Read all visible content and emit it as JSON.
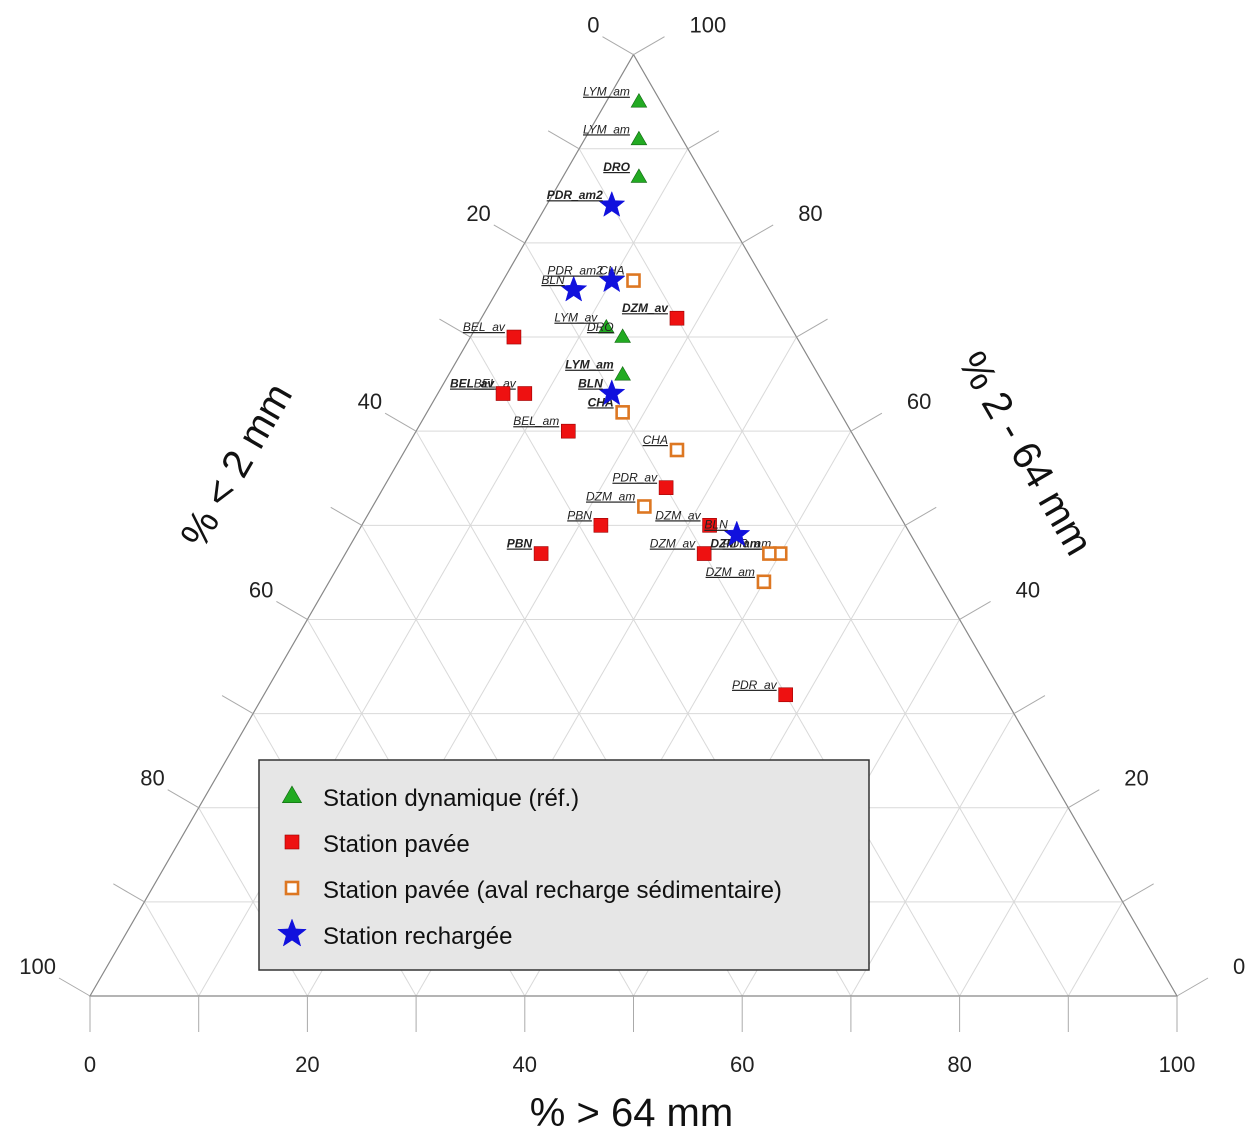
{
  "chart_data": {
    "type": "scatter",
    "subtype": "ternary",
    "axes": {
      "bottom": {
        "label": "% > 64 mm",
        "ticks": [
          "0",
          "20",
          "40",
          "60",
          "80",
          "100"
        ]
      },
      "left": {
        "label": "% < 2 mm",
        "ticks": [
          "0",
          "20",
          "40",
          "60",
          "80",
          "100"
        ]
      },
      "right": {
        "label": "% 2 - 64 mm",
        "ticks": [
          "100",
          "80",
          "60",
          "40",
          "20",
          "0"
        ]
      }
    },
    "grid": true,
    "legend_position": "bottom-center",
    "series": [
      {
        "name": "Station dynamique (réf.)",
        "marker": "triangle",
        "color": "#22aa22",
        "points": [
          {
            "label": "LYM_am",
            "bold": false,
            "coarse": 3,
            "sand": 2,
            "gravel": 95
          },
          {
            "label": "LYM_am",
            "bold": false,
            "coarse": 5,
            "sand": 4,
            "gravel": 91
          },
          {
            "label": "DRO",
            "bold": true,
            "coarse": 7,
            "sand": 6,
            "gravel": 87
          },
          {
            "label": "LYM_av",
            "bold": false,
            "coarse": 12,
            "sand": 17,
            "gravel": 71
          },
          {
            "label": "DRO",
            "bold": false,
            "coarse": 14,
            "sand": 16,
            "gravel": 70
          },
          {
            "label": "LYM_am",
            "bold": true,
            "coarse": 16,
            "sand": 18,
            "gravel": 66
          }
        ]
      },
      {
        "name": "Station pavée",
        "marker": "square",
        "color": "#ee1111",
        "points": [
          {
            "label": "DZM_av",
            "bold": true,
            "coarse": 18,
            "sand": 10,
            "gravel": 72
          },
          {
            "label": "BEL_av",
            "bold": false,
            "coarse": 8,
            "sand": 28,
            "gravel": 64
          },
          {
            "label": "BEL_av",
            "bold": false,
            "coarse": 4,
            "sand": 26,
            "gravel": 70
          },
          {
            "label": "BEL_av",
            "bold": true,
            "coarse": 6,
            "sand": 30,
            "gravel": 64
          },
          {
            "label": "BEL_am",
            "bold": false,
            "coarse": 14,
            "sand": 26,
            "gravel": 60
          },
          {
            "label": "PDR_av",
            "bold": false,
            "coarse": 26,
            "sand": 20,
            "gravel": 54
          },
          {
            "label": "DZM_av",
            "bold": false,
            "coarse": 32,
            "sand": 18,
            "gravel": 50
          },
          {
            "label": "DZM_av",
            "bold": false,
            "coarse": 33,
            "sand": 20,
            "gravel": 47
          },
          {
            "label": "PBN",
            "bold": false,
            "coarse": 22,
            "sand": 28,
            "gravel": 50
          },
          {
            "label": "PBN",
            "bold": true,
            "coarse": 18,
            "sand": 35,
            "gravel": 47
          },
          {
            "label": "PDR_av",
            "bold": false,
            "coarse": 48,
            "sand": 20,
            "gravel": 32
          }
        ]
      },
      {
        "name": "Station pavée (aval recharge sédimentaire)",
        "marker": "open-square",
        "color": "#dd7722",
        "points": [
          {
            "label": "CHA",
            "bold": false,
            "coarse": 12,
            "sand": 12,
            "gravel": 76
          },
          {
            "label": "CHA",
            "bold": true,
            "coarse": 18,
            "sand": 20,
            "gravel": 62
          },
          {
            "label": "CHA",
            "bold": false,
            "coarse": 25,
            "sand": 17,
            "gravel": 58
          },
          {
            "label": "DZM_am",
            "bold": false,
            "coarse": 25,
            "sand": 23,
            "gravel": 52
          },
          {
            "label": "PDR_am",
            "bold": false,
            "coarse": 40,
            "sand": 13,
            "gravel": 47
          },
          {
            "label": "DZM_am",
            "bold": true,
            "coarse": 39,
            "sand": 14,
            "gravel": 47
          },
          {
            "label": "DZM_am",
            "bold": false,
            "coarse": 40,
            "sand": 16,
            "gravel": 44
          }
        ]
      },
      {
        "name": "Station rechargée",
        "marker": "star",
        "color": "#1111dd",
        "points": [
          {
            "label": "PDR_am2",
            "bold": true,
            "coarse": 6,
            "sand": 10,
            "gravel": 84
          },
          {
            "label": "BLN",
            "bold": false,
            "coarse": 7,
            "sand": 18,
            "gravel": 75
          },
          {
            "label": "PDR_am2",
            "bold": false,
            "coarse": 10,
            "sand": 14,
            "gravel": 76
          },
          {
            "label": "BLN",
            "bold": true,
            "coarse": 16,
            "sand": 20,
            "gravel": 64
          },
          {
            "label": "BLN",
            "bold": false,
            "coarse": 35,
            "sand": 16,
            "gravel": 49
          }
        ]
      }
    ]
  }
}
